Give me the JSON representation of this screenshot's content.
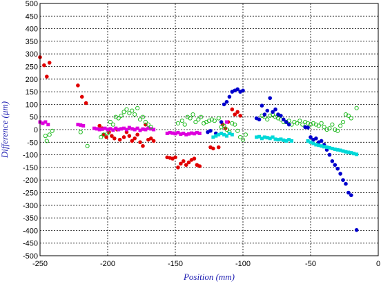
{
  "chart_data": {
    "type": "scatter",
    "title": "",
    "xlabel": "Position (mm)",
    "ylabel": "Difference (μm)",
    "xlim": [
      -250,
      0
    ],
    "ylim": [
      -500,
      500
    ],
    "xticks": [
      -250,
      -200,
      -150,
      -100,
      -50,
      0
    ],
    "yticks": [
      500,
      450,
      400,
      350,
      300,
      250,
      200,
      150,
      100,
      50,
      0,
      -50,
      -100,
      -150,
      -200,
      -250,
      -300,
      -350,
      -400,
      -450,
      -500
    ],
    "grid": true,
    "series": [
      {
        "color": "#e00000",
        "marker": "filled-circle",
        "points": [
          [
            -250,
            287
          ],
          [
            -247,
            255
          ],
          [
            -245,
            210
          ],
          [
            -243,
            265
          ],
          [
            -222,
            175
          ],
          [
            -219,
            130
          ],
          [
            -216,
            105
          ],
          [
            -206,
            15
          ],
          [
            -204,
            5
          ],
          [
            -203,
            -20
          ],
          [
            -201,
            -30
          ],
          [
            -199,
            -10
          ],
          [
            -197,
            -25
          ],
          [
            -195,
            -35
          ],
          [
            -193,
            0
          ],
          [
            -191,
            -40
          ],
          [
            -188,
            -30
          ],
          [
            -186,
            -10
          ],
          [
            -184,
            -25
          ],
          [
            -182,
            -45
          ],
          [
            -180,
            -35
          ],
          [
            -178,
            -20
          ],
          [
            -176,
            -50
          ],
          [
            -174,
            -65
          ],
          [
            -172,
            20
          ],
          [
            -170,
            -40
          ],
          [
            -168,
            -35
          ],
          [
            -166,
            -45
          ],
          [
            -156,
            -110
          ],
          [
            -154,
            -112
          ],
          [
            -152,
            -115
          ],
          [
            -150,
            -110
          ],
          [
            -148,
            -150
          ],
          [
            -146,
            -135
          ],
          [
            -144,
            -125
          ],
          [
            -142,
            -140
          ],
          [
            -140,
            -130
          ],
          [
            -138,
            -120
          ],
          [
            -136,
            -115
          ],
          [
            -134,
            -140
          ],
          [
            -132,
            -145
          ],
          [
            -124,
            -70
          ],
          [
            -122,
            -75
          ],
          [
            -118,
            -70
          ],
          [
            -115,
            20
          ],
          [
            -113,
            5
          ],
          [
            -111,
            30
          ],
          [
            -108,
            80
          ],
          [
            -106,
            60
          ],
          [
            -104,
            70
          ],
          [
            -102,
            55
          ]
        ]
      },
      {
        "color": "#dd00dd",
        "marker": "filled-square",
        "points": [
          [
            -250,
            30
          ],
          [
            -248,
            25
          ],
          [
            -246,
            30
          ],
          [
            -244,
            20
          ],
          [
            -222,
            20
          ],
          [
            -220,
            18
          ],
          [
            -218,
            15
          ],
          [
            -210,
            5
          ],
          [
            -208,
            3
          ],
          [
            -206,
            0
          ],
          [
            -204,
            2
          ],
          [
            -202,
            5
          ],
          [
            -200,
            0
          ],
          [
            -198,
            3
          ],
          [
            -196,
            -2
          ],
          [
            -194,
            5
          ],
          [
            -192,
            0
          ],
          [
            -190,
            3
          ],
          [
            -188,
            5
          ],
          [
            -186,
            0
          ],
          [
            -184,
            8
          ],
          [
            -182,
            3
          ],
          [
            -180,
            0
          ],
          [
            -178,
            5
          ],
          [
            -176,
            -3
          ],
          [
            -174,
            2
          ],
          [
            -172,
            0
          ],
          [
            -170,
            5
          ],
          [
            -168,
            3
          ],
          [
            -166,
            0
          ],
          [
            -156,
            -15
          ],
          [
            -154,
            -12
          ],
          [
            -152,
            -14
          ],
          [
            -150,
            -16
          ],
          [
            -148,
            -12
          ],
          [
            -146,
            -18
          ],
          [
            -144,
            -15
          ],
          [
            -142,
            -20
          ],
          [
            -140,
            -17
          ],
          [
            -138,
            -14
          ],
          [
            -136,
            -16
          ],
          [
            -134,
            -12
          ],
          [
            -132,
            -15
          ],
          [
            -112,
            30
          ]
        ]
      },
      {
        "color": "#22bb22",
        "marker": "open-circle",
        "points": [
          [
            -246,
            -25
          ],
          [
            -245,
            -45
          ],
          [
            -243,
            -20
          ],
          [
            -241,
            -5
          ],
          [
            -220,
            -10
          ],
          [
            -215,
            -65
          ],
          [
            -205,
            -30
          ],
          [
            -203,
            -20
          ],
          [
            -200,
            -15
          ],
          [
            -198,
            30
          ],
          [
            -196,
            20
          ],
          [
            -194,
            50
          ],
          [
            -192,
            45
          ],
          [
            -190,
            55
          ],
          [
            -188,
            70
          ],
          [
            -186,
            80
          ],
          [
            -184,
            65
          ],
          [
            -182,
            75
          ],
          [
            -180,
            60
          ],
          [
            -178,
            85
          ],
          [
            -176,
            40
          ],
          [
            -174,
            50
          ],
          [
            -172,
            30
          ],
          [
            -170,
            20
          ],
          [
            -168,
            10
          ],
          [
            -148,
            25
          ],
          [
            -145,
            35
          ],
          [
            -143,
            20
          ],
          [
            -141,
            50
          ],
          [
            -139,
            45
          ],
          [
            -137,
            60
          ],
          [
            -135,
            30
          ],
          [
            -133,
            40
          ],
          [
            -131,
            50
          ],
          [
            -129,
            25
          ],
          [
            -127,
            30
          ],
          [
            -125,
            35
          ],
          [
            -123,
            40
          ],
          [
            -121,
            35
          ],
          [
            -118,
            45
          ],
          [
            -116,
            10
          ],
          [
            -114,
            15
          ],
          [
            -112,
            0
          ],
          [
            -110,
            -10
          ],
          [
            -108,
            25
          ],
          [
            -106,
            20
          ],
          [
            -104,
            -5
          ],
          [
            -102,
            -30
          ],
          [
            -100,
            -40
          ],
          [
            -98,
            -20
          ],
          [
            -86,
            55
          ],
          [
            -84,
            50
          ],
          [
            -82,
            40
          ],
          [
            -80,
            55
          ],
          [
            -78,
            60
          ],
          [
            -76,
            50
          ],
          [
            -74,
            45
          ],
          [
            -72,
            40
          ],
          [
            -70,
            30
          ],
          [
            -68,
            30
          ],
          [
            -66,
            35
          ],
          [
            -64,
            20
          ],
          [
            -62,
            30
          ],
          [
            -60,
            25
          ],
          [
            -58,
            35
          ],
          [
            -56,
            20
          ],
          [
            -54,
            30
          ],
          [
            -52,
            25
          ],
          [
            -50,
            20
          ],
          [
            -48,
            25
          ],
          [
            -46,
            20
          ],
          [
            -44,
            15
          ],
          [
            -42,
            25
          ],
          [
            -40,
            10
          ],
          [
            -38,
            0
          ],
          [
            -36,
            5
          ],
          [
            -34,
            20
          ],
          [
            -32,
            0
          ],
          [
            -30,
            -5
          ],
          [
            -28,
            15
          ],
          [
            -26,
            30
          ],
          [
            -24,
            60
          ],
          [
            -22,
            55
          ],
          [
            -20,
            45
          ],
          [
            -16,
            85
          ]
        ]
      },
      {
        "color": "#0000cc",
        "marker": "filled-circle",
        "points": [
          [
            -126,
            -10
          ],
          [
            -124,
            -5
          ],
          [
            -120,
            -15
          ],
          [
            -116,
            30
          ],
          [
            -114,
            100
          ],
          [
            -112,
            110
          ],
          [
            -110,
            130
          ],
          [
            -108,
            150
          ],
          [
            -106,
            155
          ],
          [
            -104,
            160
          ],
          [
            -102,
            150
          ],
          [
            -100,
            155
          ],
          [
            -90,
            45
          ],
          [
            -88,
            40
          ],
          [
            -86,
            95
          ],
          [
            -84,
            60
          ],
          [
            -82,
            75
          ],
          [
            -80,
            125
          ],
          [
            -78,
            70
          ],
          [
            -76,
            80
          ],
          [
            -74,
            60
          ],
          [
            -72,
            55
          ],
          [
            -70,
            40
          ],
          [
            -68,
            30
          ],
          [
            -66,
            20
          ],
          [
            -54,
            10
          ],
          [
            -52,
            8
          ],
          [
            -50,
            -30
          ],
          [
            -48,
            -40
          ],
          [
            -46,
            -35
          ],
          [
            -44,
            -50
          ],
          [
            -42,
            -45
          ],
          [
            -40,
            -60
          ],
          [
            -38,
            -80
          ],
          [
            -36,
            -100
          ],
          [
            -34,
            -125
          ],
          [
            -32,
            -140
          ],
          [
            -30,
            -155
          ],
          [
            -28,
            -175
          ],
          [
            -26,
            -200
          ],
          [
            -24,
            -215
          ],
          [
            -22,
            -250
          ],
          [
            -20,
            -260
          ],
          [
            -16,
            -398
          ]
        ]
      },
      {
        "color": "#00d8d8",
        "marker": "filled-square",
        "points": [
          [
            -122,
            -30
          ],
          [
            -120,
            -25
          ],
          [
            -118,
            -20
          ],
          [
            -116,
            -15
          ],
          [
            -114,
            -20
          ],
          [
            -112,
            -25
          ],
          [
            -110,
            -15
          ],
          [
            -108,
            -20
          ],
          [
            -90,
            -30
          ],
          [
            -88,
            -28
          ],
          [
            -86,
            -35
          ],
          [
            -84,
            -30
          ],
          [
            -82,
            -32
          ],
          [
            -80,
            -35
          ],
          [
            -78,
            -30
          ],
          [
            -76,
            -38
          ],
          [
            -74,
            -40
          ],
          [
            -72,
            -38
          ],
          [
            -70,
            -42
          ],
          [
            -68,
            -45
          ],
          [
            -66,
            -40
          ],
          [
            -64,
            -45
          ],
          [
            -52,
            -45
          ],
          [
            -50,
            -50
          ],
          [
            -48,
            -55
          ],
          [
            -46,
            -60
          ],
          [
            -44,
            -62
          ],
          [
            -42,
            -65
          ],
          [
            -40,
            -68
          ],
          [
            -38,
            -70
          ],
          [
            -36,
            -72
          ],
          [
            -34,
            -75
          ],
          [
            -32,
            -78
          ],
          [
            -30,
            -80
          ],
          [
            -28,
            -82
          ],
          [
            -26,
            -85
          ],
          [
            -24,
            -88
          ],
          [
            -22,
            -90
          ],
          [
            -20,
            -92
          ],
          [
            -18,
            -95
          ],
          [
            -16,
            -98
          ]
        ]
      }
    ]
  }
}
